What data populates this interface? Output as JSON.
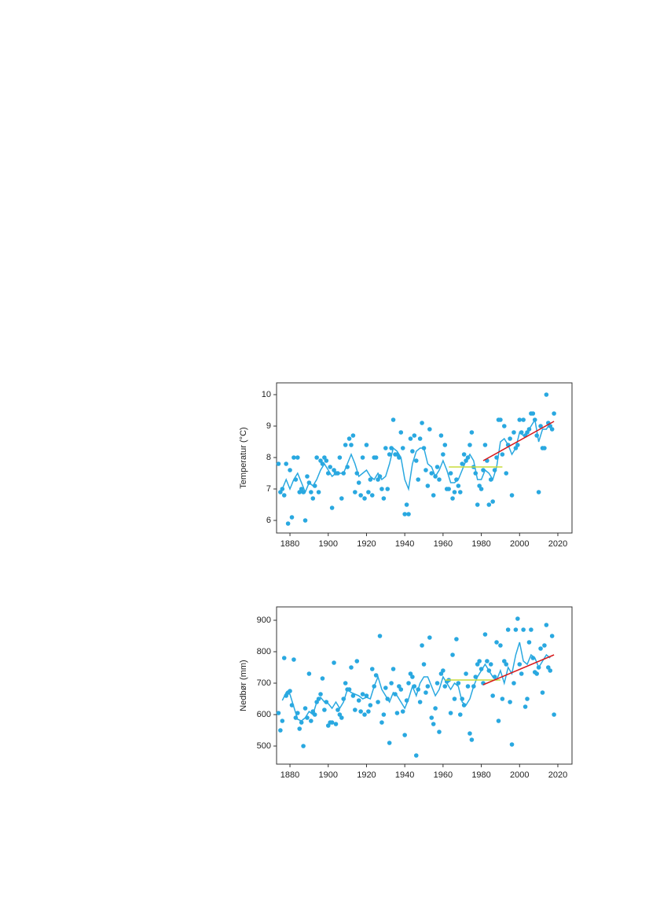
{
  "chart_data": [
    {
      "type": "scatter",
      "ylabel": "Temperatur (°C)",
      "xlim": [
        1873,
        2027.4
      ],
      "xticks": [
        1880,
        1900,
        1920,
        1940,
        1960,
        1980,
        2000,
        2020
      ],
      "ylim": [
        5.6,
        10.375
      ],
      "yticks": [
        6,
        7,
        8,
        9,
        10
      ],
      "series": [
        {
          "type": "scatter",
          "color": "#29a8e0",
          "x": [
            1874,
            1875,
            1876,
            1877,
            1878,
            1879,
            1880,
            1881,
            1882,
            1883,
            1884,
            1885,
            1886,
            1887,
            1888,
            1889,
            1890,
            1891,
            1892,
            1893,
            1894,
            1895,
            1896,
            1897,
            1898,
            1899,
            1900,
            1901,
            1902,
            1903,
            1904,
            1905,
            1906,
            1907,
            1908,
            1909,
            1910,
            1911,
            1912,
            1913,
            1914,
            1915,
            1916,
            1917,
            1918,
            1919,
            1920,
            1921,
            1922,
            1923,
            1924,
            1925,
            1926,
            1927,
            1928,
            1929,
            1930,
            1931,
            1932,
            1933,
            1934,
            1935,
            1936,
            1937,
            1938,
            1939,
            1940,
            1941,
            1942,
            1943,
            1944,
            1945,
            1946,
            1947,
            1948,
            1949,
            1950,
            1951,
            1952,
            1953,
            1954,
            1955,
            1956,
            1957,
            1958,
            1959,
            1960,
            1961,
            1962,
            1963,
            1964,
            1965,
            1966,
            1967,
            1968,
            1969,
            1970,
            1971,
            1972,
            1973,
            1974,
            1975,
            1976,
            1977,
            1978,
            1979,
            1980,
            1981,
            1982,
            1983,
            1984,
            1985,
            1986,
            1987,
            1988,
            1989,
            1990,
            1991,
            1992,
            1993,
            1994,
            1995,
            1996,
            1997,
            1998,
            1999,
            2000,
            2001,
            2002,
            2003,
            2004,
            2005,
            2006,
            2007,
            2008,
            2009,
            2010,
            2011,
            2012,
            2013,
            2014,
            2015,
            2016,
            2017,
            2018
          ],
          "values": [
            7.8,
            6.9,
            7.0,
            6.8,
            7.8,
            5.9,
            7.6,
            6.1,
            8.0,
            7.3,
            8.0,
            6.9,
            7.0,
            6.9,
            6.0,
            7.4,
            7.2,
            6.9,
            6.7,
            7.1,
            8.0,
            6.9,
            7.9,
            7.8,
            8.0,
            7.9,
            7.5,
            7.7,
            6.4,
            7.6,
            7.5,
            7.5,
            8.0,
            6.7,
            7.5,
            8.4,
            7.7,
            8.6,
            8.4,
            8.7,
            6.9,
            7.5,
            7.2,
            6.8,
            8.0,
            6.7,
            8.4,
            6.9,
            7.3,
            6.8,
            8.0,
            8.0,
            7.3,
            7.4,
            7.0,
            6.7,
            8.3,
            7.0,
            8.1,
            8.3,
            9.2,
            8.1,
            8.1,
            8.0,
            8.8,
            8.3,
            6.2,
            6.5,
            6.2,
            8.6,
            8.2,
            8.7,
            7.9,
            7.3,
            8.6,
            9.1,
            8.3,
            7.6,
            7.1,
            8.9,
            7.5,
            6.8,
            7.4,
            7.7,
            7.3,
            8.7,
            8.1,
            8.4,
            7.0,
            7.0,
            7.5,
            6.7,
            6.9,
            7.3,
            7.1,
            6.9,
            7.8,
            8.1,
            7.9,
            8.0,
            8.4,
            8.8,
            7.7,
            7.5,
            6.5,
            7.1,
            7.0,
            7.6,
            8.4,
            7.9,
            6.5,
            7.3,
            6.6,
            7.6,
            8.0,
            9.2,
            9.2,
            8.1,
            9.0,
            7.5,
            8.4,
            8.6,
            6.8,
            8.8,
            8.3,
            8.4,
            9.2,
            8.8,
            9.2,
            8.7,
            8.8,
            8.9,
            9.4,
            9.4,
            9.2,
            8.7,
            6.9,
            9.0,
            8.3,
            8.3,
            10.0,
            9.1,
            9.0,
            8.9,
            9.4
          ]
        },
        {
          "type": "line",
          "color": "#29a8e0",
          "x": [
            1876,
            1878,
            1880,
            1882,
            1884,
            1886,
            1888,
            1890,
            1892,
            1894,
            1896,
            1898,
            1900,
            1902,
            1904,
            1906,
            1908,
            1910,
            1912,
            1914,
            1916,
            1918,
            1920,
            1922,
            1924,
            1926,
            1928,
            1930,
            1932,
            1934,
            1936,
            1938,
            1940,
            1942,
            1944,
            1946,
            1948,
            1950,
            1952,
            1954,
            1956,
            1958,
            1960,
            1962,
            1964,
            1966,
            1968,
            1970,
            1972,
            1974,
            1976,
            1978,
            1980,
            1982,
            1984,
            1986,
            1988,
            1990,
            1992,
            1994,
            1996,
            1998,
            2000,
            2002,
            2004,
            2006,
            2008,
            2010,
            2012,
            2014,
            2016
          ],
          "values": [
            7.0,
            7.3,
            7.0,
            7.3,
            7.5,
            7.2,
            6.9,
            7.2,
            7.1,
            7.3,
            7.6,
            7.8,
            7.6,
            7.4,
            7.5,
            7.5,
            7.5,
            7.8,
            8.1,
            7.8,
            7.4,
            7.5,
            7.6,
            7.4,
            7.3,
            7.5,
            7.3,
            7.4,
            7.8,
            8.3,
            8.2,
            8.0,
            7.3,
            7.0,
            7.8,
            8.2,
            8.3,
            8.3,
            7.8,
            7.7,
            7.4,
            7.6,
            7.9,
            7.6,
            7.2,
            7.2,
            7.3,
            7.6,
            7.9,
            8.1,
            7.9,
            7.3,
            7.3,
            7.6,
            7.5,
            7.3,
            7.7,
            8.5,
            8.6,
            8.4,
            8.1,
            8.3,
            8.8,
            8.7,
            8.8,
            9.0,
            9.2,
            8.5,
            8.9,
            8.9,
            9.1
          ]
        },
        {
          "type": "line",
          "color": "#c8dc3c",
          "x": [
            1963,
            1991
          ],
          "values": [
            7.7,
            7.7
          ]
        },
        {
          "type": "line",
          "color": "#d7191c",
          "x": [
            1981,
            2018
          ],
          "values": [
            7.9,
            9.15
          ]
        }
      ]
    },
    {
      "type": "scatter",
      "ylabel": "Nedbør (mm)",
      "xlim": [
        1873,
        2027.4
      ],
      "xticks": [
        1880,
        1900,
        1920,
        1940,
        1960,
        1980,
        2000,
        2020
      ],
      "ylim": [
        442.5,
        942.5
      ],
      "yticks": [
        500,
        600,
        700,
        800,
        900
      ],
      "series": [
        {
          "type": "scatter",
          "color": "#29a8e0",
          "x": [
            1874,
            1875,
            1876,
            1877,
            1878,
            1879,
            1880,
            1881,
            1882,
            1883,
            1884,
            1885,
            1886,
            1887,
            1888,
            1889,
            1890,
            1891,
            1892,
            1893,
            1894,
            1895,
            1896,
            1897,
            1898,
            1899,
            1900,
            1901,
            1902,
            1903,
            1904,
            1905,
            1906,
            1907,
            1908,
            1909,
            1910,
            1911,
            1912,
            1913,
            1914,
            1915,
            1916,
            1917,
            1918,
            1919,
            1920,
            1921,
            1922,
            1923,
            1924,
            1925,
            1926,
            1927,
            1928,
            1929,
            1930,
            1931,
            1932,
            1933,
            1934,
            1935,
            1936,
            1937,
            1938,
            1939,
            1940,
            1941,
            1942,
            1943,
            1944,
            1945,
            1946,
            1947,
            1948,
            1949,
            1950,
            1951,
            1952,
            1953,
            1954,
            1955,
            1956,
            1957,
            1958,
            1959,
            1960,
            1961,
            1962,
            1963,
            1964,
            1965,
            1966,
            1967,
            1968,
            1969,
            1970,
            1971,
            1972,
            1973,
            1974,
            1975,
            1976,
            1977,
            1978,
            1979,
            1980,
            1981,
            1982,
            1983,
            1984,
            1985,
            1986,
            1987,
            1988,
            1989,
            1990,
            1991,
            1992,
            1993,
            1994,
            1995,
            1996,
            1997,
            1998,
            1999,
            2000,
            2001,
            2002,
            2003,
            2004,
            2005,
            2006,
            2007,
            2008,
            2009,
            2010,
            2011,
            2012,
            2013,
            2014,
            2015,
            2016,
            2017,
            2018
          ],
          "values": [
            605,
            550,
            580,
            780,
            660,
            670,
            675,
            630,
            775,
            590,
            605,
            555,
            575,
            500,
            620,
            590,
            730,
            580,
            610,
            600,
            640,
            650,
            665,
            715,
            615,
            640,
            565,
            575,
            575,
            765,
            570,
            615,
            600,
            590,
            650,
            700,
            680,
            680,
            750,
            660,
            615,
            770,
            645,
            610,
            665,
            600,
            660,
            610,
            630,
            745,
            690,
            725,
            640,
            850,
            575,
            600,
            685,
            650,
            510,
            700,
            745,
            665,
            605,
            690,
            680,
            610,
            535,
            645,
            700,
            730,
            720,
            690,
            470,
            680,
            640,
            820,
            760,
            670,
            690,
            845,
            590,
            570,
            620,
            700,
            545,
            730,
            740,
            690,
            705,
            710,
            605,
            790,
            650,
            840,
            700,
            600,
            650,
            630,
            730,
            690,
            540,
            520,
            690,
            720,
            760,
            770,
            745,
            700,
            855,
            770,
            740,
            760,
            660,
            720,
            830,
            580,
            820,
            650,
            770,
            760,
            870,
            640,
            505,
            700,
            870,
            905,
            760,
            730,
            870,
            625,
            650,
            830,
            870,
            780,
            735,
            730,
            750,
            810,
            670,
            820,
            885,
            750,
            740,
            850,
            600
          ]
        },
        {
          "type": "line",
          "color": "#29a8e0",
          "x": [
            1876,
            1878,
            1880,
            1882,
            1884,
            1886,
            1888,
            1890,
            1892,
            1894,
            1896,
            1898,
            1900,
            1902,
            1904,
            1906,
            1908,
            1910,
            1912,
            1914,
            1916,
            1918,
            1920,
            1922,
            1924,
            1926,
            1928,
            1930,
            1932,
            1934,
            1936,
            1938,
            1940,
            1942,
            1944,
            1946,
            1948,
            1950,
            1952,
            1954,
            1956,
            1958,
            1960,
            1962,
            1964,
            1966,
            1968,
            1970,
            1972,
            1974,
            1976,
            1978,
            1980,
            1982,
            1984,
            1986,
            1988,
            1990,
            1992,
            1994,
            1996,
            1998,
            2000,
            2002,
            2004,
            2006,
            2008,
            2010,
            2012,
            2014,
            2016
          ],
          "values": [
            645,
            670,
            665,
            625,
            585,
            580,
            590,
            610,
            600,
            640,
            655,
            640,
            635,
            620,
            640,
            620,
            640,
            680,
            670,
            665,
            660,
            650,
            655,
            650,
            690,
            720,
            680,
            660,
            640,
            670,
            660,
            640,
            620,
            650,
            690,
            660,
            700,
            720,
            720,
            690,
            660,
            680,
            720,
            700,
            680,
            700,
            690,
            640,
            630,
            650,
            690,
            720,
            740,
            760,
            740,
            720,
            710,
            740,
            700,
            750,
            730,
            790,
            830,
            770,
            760,
            790,
            780,
            750,
            770,
            790,
            780
          ]
        },
        {
          "type": "line",
          "color": "#c8dc3c",
          "x": [
            1961,
            1990
          ],
          "values": [
            710,
            710
          ]
        },
        {
          "type": "line",
          "color": "#d7191c",
          "x": [
            1981,
            2018
          ],
          "values": [
            695,
            790
          ]
        }
      ]
    }
  ]
}
